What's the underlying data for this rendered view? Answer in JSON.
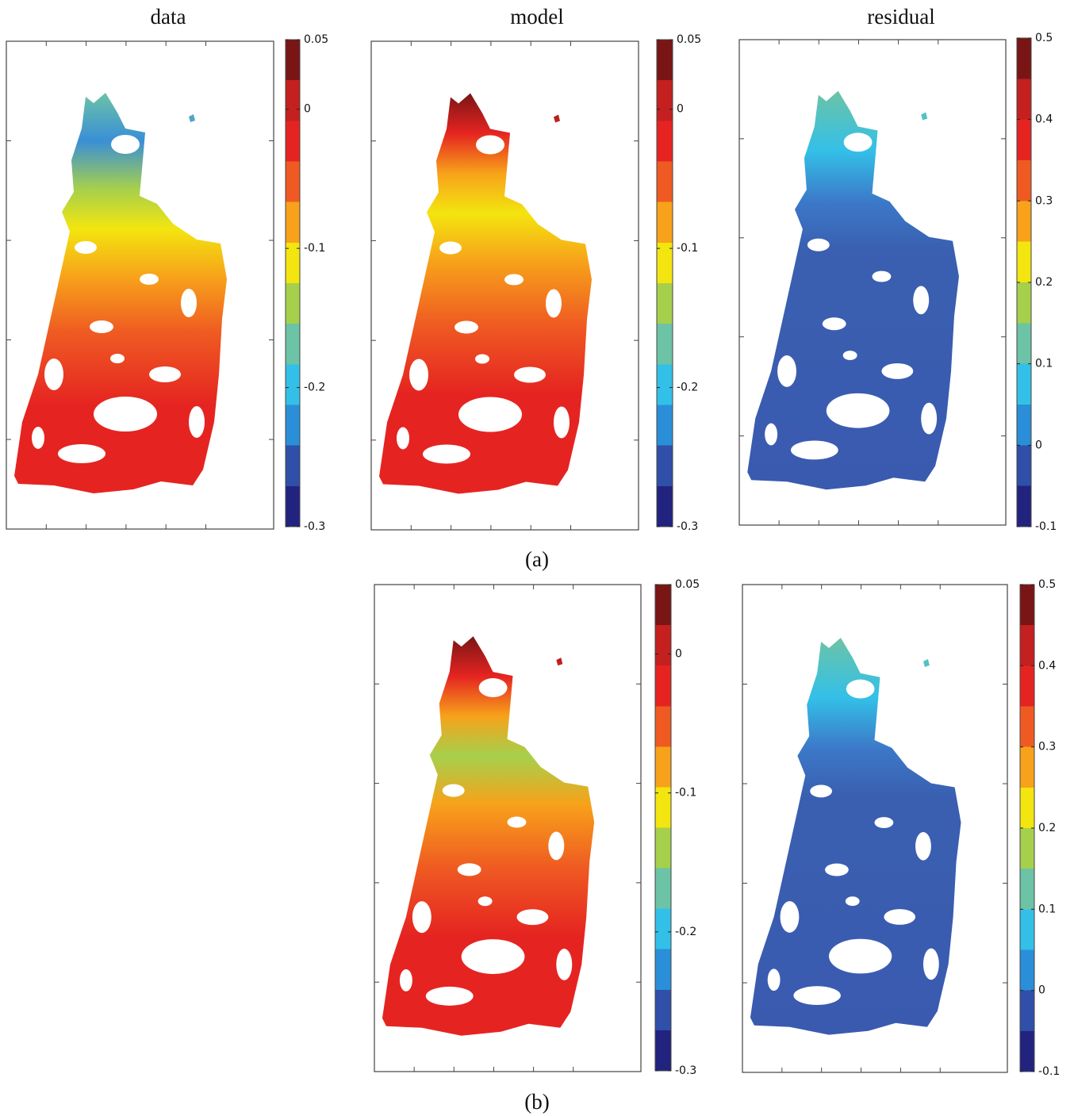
{
  "column_titles": [
    "data",
    "model",
    "residual"
  ],
  "colormap": [
    "#22237f",
    "#2f4fa8",
    "#2a8fd8",
    "#33c0e8",
    "#6cc3a6",
    "#a6d04c",
    "#f3e50f",
    "#f7a21a",
    "#ef5a22",
    "#e52421",
    "#c3201f",
    "#7a1515"
  ],
  "rows": [
    {
      "caption": "(a)",
      "panels": [
        {
          "colorbar": {
            "lim": [
              -0.3,
              0.05
            ],
            "ticks": [
              0.05,
              0,
              -0.1,
              -0.2,
              -0.3
            ]
          }
        },
        {
          "colorbar": {
            "lim": [
              -0.3,
              0.05
            ],
            "ticks": [
              0.05,
              0,
              -0.1,
              -0.2,
              -0.3
            ]
          }
        },
        {
          "colorbar": {
            "lim": [
              -0.1,
              0.5
            ],
            "ticks": [
              0.5,
              0.4,
              0.3,
              0.2,
              0.1,
              0,
              -0.1
            ]
          }
        }
      ]
    },
    {
      "caption": "(b)",
      "panels": [
        {
          "colorbar": {
            "lim": [
              -0.3,
              0.05
            ],
            "ticks": [
              0.05,
              0,
              -0.1,
              -0.2,
              -0.3
            ]
          }
        },
        {
          "colorbar": {
            "lim": [
              -0.1,
              0.5
            ],
            "ticks": [
              0.5,
              0.4,
              0.3,
              0.2,
              0.1,
              0,
              -0.1
            ]
          }
        }
      ]
    }
  ]
}
